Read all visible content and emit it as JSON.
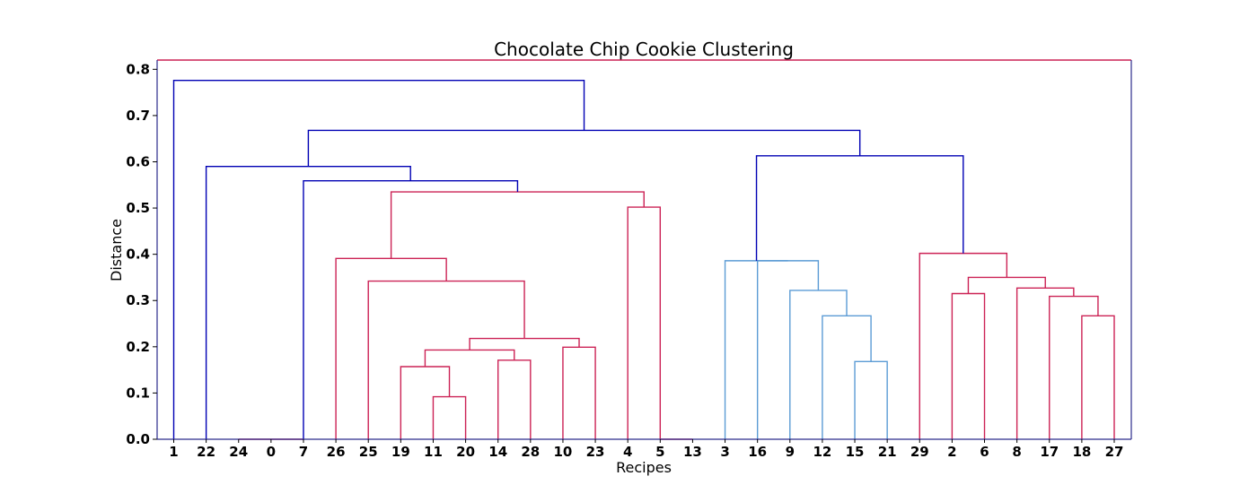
{
  "chart_data": {
    "type": "dendrogram",
    "title": "Chocolate Chip Cookie Clustering",
    "xlabel": "Recipes",
    "ylabel": "Distance",
    "ylim": [
      0,
      0.82
    ],
    "yticks": [
      0.0,
      0.1,
      0.2,
      0.3,
      0.4,
      0.5,
      0.6,
      0.7,
      0.8
    ],
    "ytick_labels": [
      "0.0",
      "0.1",
      "0.2",
      "0.3",
      "0.4",
      "0.5",
      "0.6",
      "0.7",
      "0.8"
    ],
    "leaves": [
      "1",
      "22",
      "24",
      "0",
      "7",
      "26",
      "25",
      "19",
      "11",
      "20",
      "14",
      "28",
      "10",
      "23",
      "4",
      "5",
      "13",
      "3",
      "16",
      "9",
      "12",
      "15",
      "21",
      "29",
      "2",
      "6",
      "8",
      "17",
      "18",
      "27"
    ],
    "colors": {
      "above_threshold": "#0000b4",
      "cluster_red": "#cc2255",
      "cluster_blue": "#5b9bd5",
      "frame_top": "#cc2255",
      "frame": "#2b2b8c"
    },
    "links": [
      {
        "left": "24",
        "right": "0",
        "height": 0.0,
        "color": "red"
      },
      {
        "left": "0",
        "right": "7",
        "height": 0.0,
        "color": "red"
      },
      {
        "left": "11",
        "right": "20",
        "height": 0.092,
        "color": "red"
      },
      {
        "left": "19",
        "right": "11+20",
        "height": 0.157,
        "color": "red"
      },
      {
        "left": "14",
        "right": "28",
        "height": 0.171,
        "color": "red"
      },
      {
        "left": "19+11+20",
        "right": "14+28",
        "height": 0.193,
        "color": "red"
      },
      {
        "left": "10",
        "right": "23",
        "height": 0.199,
        "color": "red"
      },
      {
        "left": "19..28",
        "right": "10+23",
        "height": 0.218,
        "color": "red"
      },
      {
        "left": "25",
        "right": "19..23",
        "height": 0.342,
        "color": "red"
      },
      {
        "left": "26",
        "right": "25..23",
        "height": 0.391,
        "color": "red"
      },
      {
        "left": "4",
        "right": "5",
        "height": 0.502,
        "color": "red"
      },
      {
        "left": "5",
        "right": "13",
        "height": 0.0,
        "color": "red"
      },
      {
        "left": "26..23",
        "right": "4+5",
        "height": 0.535,
        "color": "red"
      },
      {
        "left": "7",
        "right": "26..5",
        "height": 0.559,
        "color": "blue"
      },
      {
        "left": "22",
        "right": "0..5",
        "height": 0.59,
        "color": "blue"
      },
      {
        "left": "15",
        "right": "21",
        "height": 0.168,
        "color": "lightblue"
      },
      {
        "left": "12",
        "right": "15+21",
        "height": 0.267,
        "color": "lightblue"
      },
      {
        "left": "9",
        "right": "12+15+21",
        "height": 0.322,
        "color": "lightblue"
      },
      {
        "left": "16",
        "right": "9..21",
        "height": 0.386,
        "color": "lightblue"
      },
      {
        "left": "3",
        "right": "16..21",
        "height": 0.386,
        "color": "lightblue"
      },
      {
        "left": "18",
        "right": "27",
        "height": 0.267,
        "color": "red"
      },
      {
        "left": "17",
        "right": "18+27",
        "height": 0.309,
        "color": "red"
      },
      {
        "left": "2",
        "right": "6",
        "height": 0.315,
        "color": "red"
      },
      {
        "left": "8",
        "right": "17+18+27",
        "height": 0.327,
        "color": "red"
      },
      {
        "left": "2+6",
        "right": "8..27",
        "height": 0.35,
        "color": "red"
      },
      {
        "left": "29",
        "right": "2..27",
        "height": 0.402,
        "color": "red"
      },
      {
        "left": "3..21",
        "right": "29..27",
        "height": 0.613,
        "color": "blue"
      },
      {
        "left": "22..5",
        "right": "3..27",
        "height": 0.668,
        "color": "blue"
      },
      {
        "left": "1",
        "right": "22..27",
        "height": 0.776,
        "color": "blue"
      }
    ]
  }
}
